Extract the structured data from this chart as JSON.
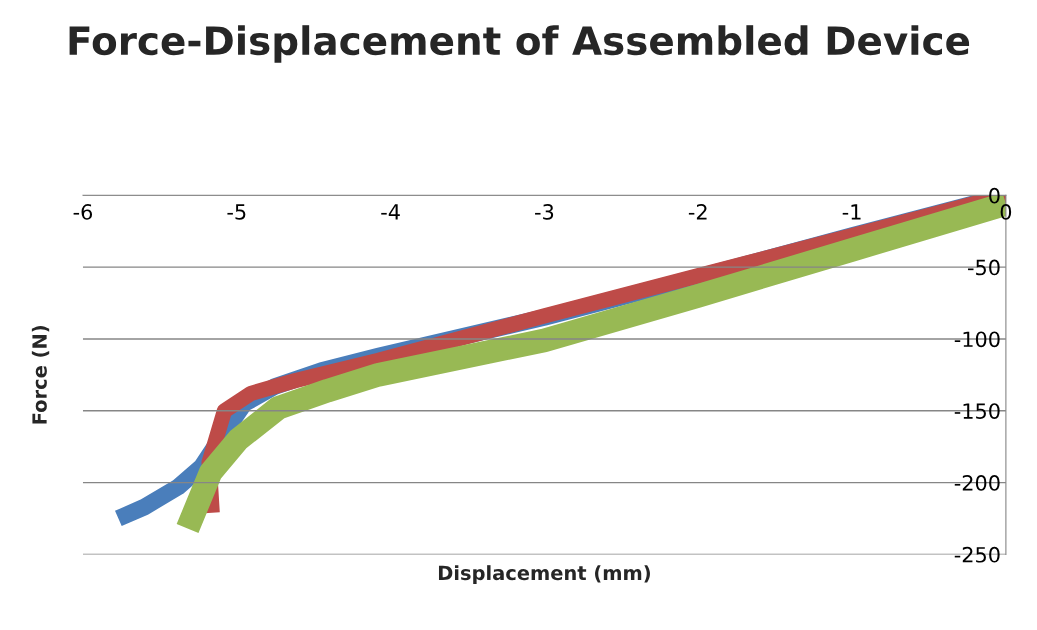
{
  "chart_data": {
    "type": "line",
    "title": "Force-Displacement of Assembled Device",
    "xlabel": "Displacement (mm)",
    "ylabel": "Force (N)",
    "xlim": [
      -6,
      0
    ],
    "xticks": [
      -6,
      -5,
      -4,
      -3,
      -2,
      -1,
      0
    ],
    "ylim": [
      -250,
      0
    ],
    "yticks": [
      -250,
      -200,
      -150,
      -100,
      -50,
      0
    ],
    "grid": "y",
    "legend": false,
    "series": [
      {
        "color": "#4a7ebb",
        "x": [
          -5.77,
          -5.6,
          -5.38,
          -5.23,
          -5.1,
          -4.95,
          -4.75,
          -4.45,
          -4.08,
          -3,
          -2,
          -1,
          0
        ],
        "values": [
          -225,
          -217,
          -203,
          -189,
          -168,
          -145,
          -133,
          -122,
          -112,
          -85,
          -57,
          -28,
          0
        ]
      },
      {
        "color": "#be4b48",
        "x": [
          -5.16,
          -5.18,
          -5.08,
          -4.91,
          -4.62,
          -4.08,
          -3,
          -2,
          -1,
          0
        ],
        "values": [
          -221,
          -186,
          -150,
          -138,
          -129,
          -115,
          -84,
          -56,
          -28,
          0
        ]
      },
      {
        "color": "#98b954",
        "x": [
          -5.32,
          -5.17,
          -4.99,
          -4.73,
          -4.41,
          -4.08,
          -3,
          -2,
          -1,
          0
        ],
        "values": [
          -232,
          -193,
          -170,
          -148,
          -136,
          -125,
          -101,
          -70,
          -38,
          -6
        ]
      }
    ]
  }
}
